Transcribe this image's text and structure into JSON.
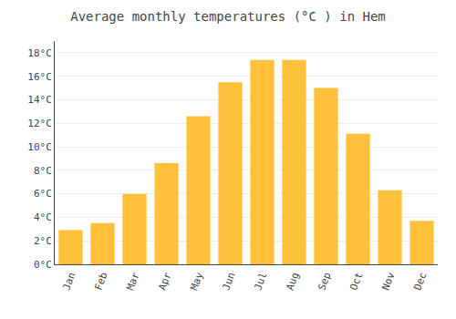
{
  "chart_data": {
    "type": "bar",
    "title": "Average monthly temperatures (°C ) in Hem",
    "categories": [
      "Jan",
      "Feb",
      "Mar",
      "Apr",
      "May",
      "Jun",
      "Jul",
      "Aug",
      "Sep",
      "Oct",
      "Nov",
      "Dec"
    ],
    "values": [
      2.9,
      3.5,
      6.0,
      8.6,
      12.6,
      15.5,
      17.4,
      17.4,
      15.0,
      11.1,
      6.3,
      3.7
    ],
    "color": "#FFC03A",
    "ylim": [
      0,
      19
    ],
    "yticks": [
      {
        "value": 0,
        "label": "0°C"
      },
      {
        "value": 2,
        "label": "2°C"
      },
      {
        "value": 4,
        "label": "4°C"
      },
      {
        "value": 6,
        "label": "6°C"
      },
      {
        "value": 8,
        "label": "8°C"
      },
      {
        "value": 10,
        "label": "10°C"
      },
      {
        "value": 12,
        "label": "12°C"
      },
      {
        "value": 14,
        "label": "14°C"
      },
      {
        "value": 16,
        "label": "16°C"
      },
      {
        "value": 18,
        "label": "18°C"
      }
    ],
    "grid": true
  }
}
